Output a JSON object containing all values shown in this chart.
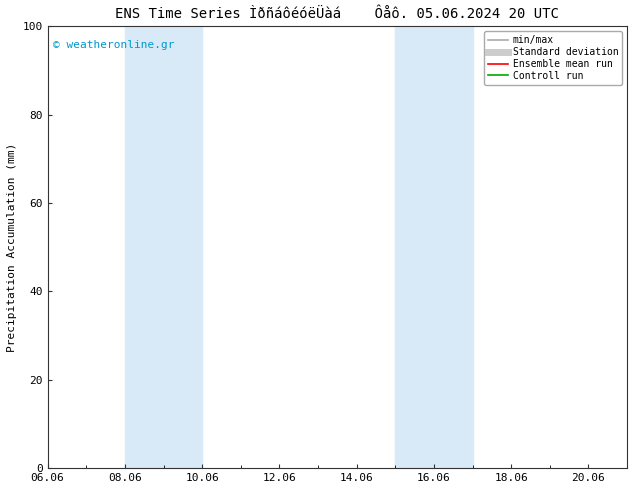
{
  "title_left": "ENS Time Series ÌðñáôéóëÜàá",
  "title_right": "Ôåô. 05.06.2024 20 UTC",
  "ylabel": "Precipitation Accumulation (mm)",
  "ylim": [
    0,
    100
  ],
  "yticks": [
    0,
    20,
    40,
    60,
    80,
    100
  ],
  "xlim": [
    0,
    15
  ],
  "xtick_labels": [
    "06.06",
    "08.06",
    "10.06",
    "12.06",
    "14.06",
    "16.06",
    "18.06",
    "20.06"
  ],
  "xtick_positions": [
    0,
    2,
    4,
    6,
    8,
    10,
    12,
    14
  ],
  "shade_regions": [
    {
      "start": 2,
      "end": 4,
      "color": "#d8eaf8"
    },
    {
      "start": 9,
      "end": 11,
      "color": "#d8eaf8"
    }
  ],
  "watermark": "© weatheronline.gr",
  "watermark_color": "#0099cc",
  "legend_items": [
    {
      "label": "min/max",
      "color": "#aaaaaa",
      "lw": 1.2,
      "type": "line"
    },
    {
      "label": "Standard deviation",
      "color": "#cccccc",
      "lw": 5,
      "type": "line"
    },
    {
      "label": "Ensemble mean run",
      "color": "#ff0000",
      "lw": 1.2,
      "type": "line"
    },
    {
      "label": "Controll run",
      "color": "#00aa00",
      "lw": 1.2,
      "type": "line"
    }
  ],
  "bg_color": "#ffffff",
  "plot_bg_color": "#ffffff",
  "title_fontsize": 10,
  "ylabel_fontsize": 8,
  "tick_fontsize": 8,
  "watermark_fontsize": 8,
  "legend_fontsize": 7
}
